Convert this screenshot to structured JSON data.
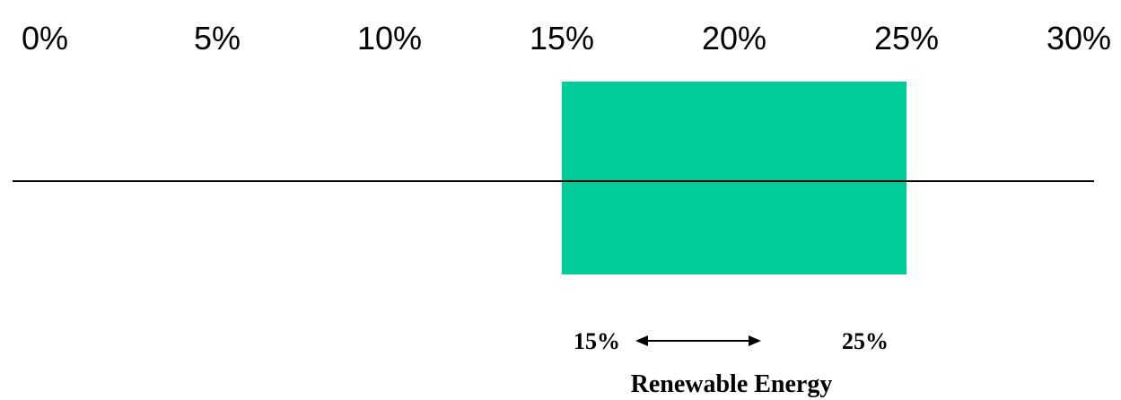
{
  "chart_data": {
    "type": "bar",
    "orientation": "horizontal",
    "tick_labels": [
      "0%",
      "5%",
      "10%",
      "15%",
      "20%",
      "25%",
      "30%"
    ],
    "xlim": [
      0,
      30
    ],
    "grid": false,
    "range": {
      "label": "Renewable Energy",
      "low": 15,
      "high": 25,
      "low_label": "15%",
      "high_label": "25%",
      "color": "#00CC99"
    },
    "axis_color": "#000000"
  }
}
